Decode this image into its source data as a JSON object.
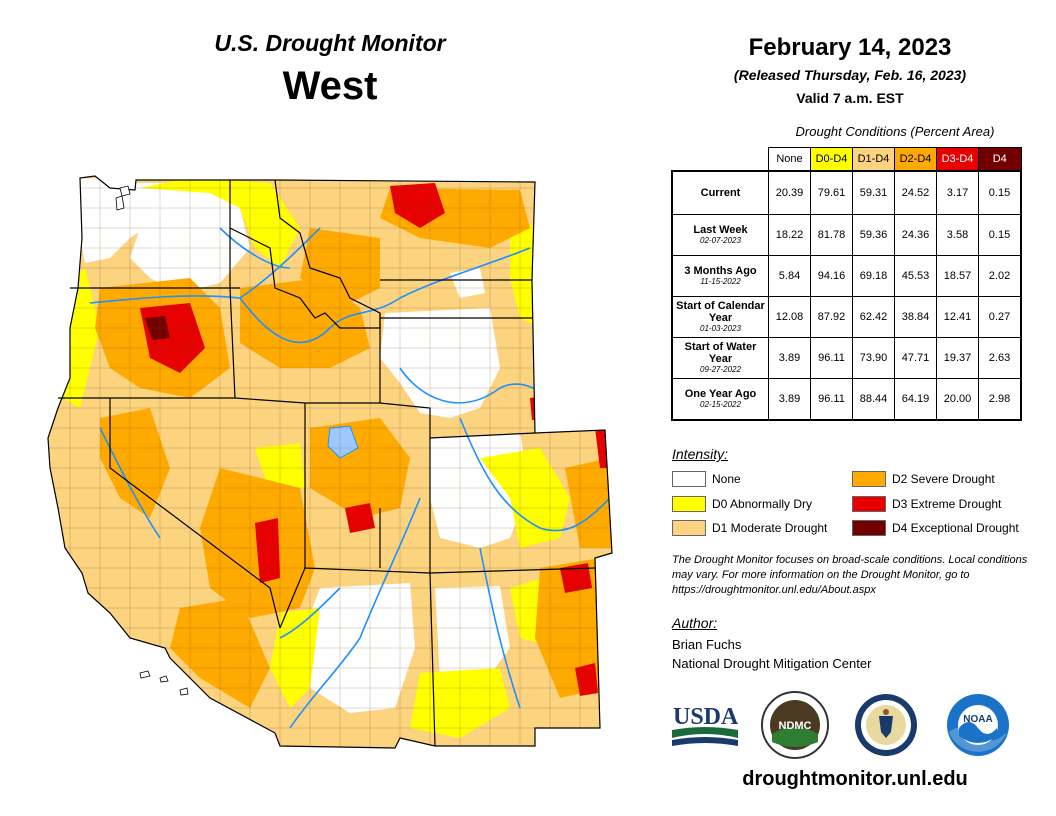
{
  "header": {
    "product": "U.S. Drought Monitor",
    "region": "West",
    "date": "February 14, 2023",
    "released": "(Released Thursday, Feb. 16, 2023)",
    "valid": "Valid 7 a.m. EST"
  },
  "colors": {
    "none": "#ffffff",
    "D0": "#ffff00",
    "D1": "#fcd37f",
    "D2": "#ffaa00",
    "D3": "#e60000",
    "D4": "#730000",
    "water": "#1e90ff"
  },
  "table": {
    "caption": "Drought Conditions (Percent Area)",
    "columns": [
      "None",
      "D0-D4",
      "D1-D4",
      "D2-D4",
      "D3-D4",
      "D4"
    ],
    "rows": [
      {
        "label": "Current",
        "date": "",
        "values": [
          "20.39",
          "79.61",
          "59.31",
          "24.52",
          "3.17",
          "0.15"
        ]
      },
      {
        "label": "Last Week",
        "date": "02-07-2023",
        "values": [
          "18.22",
          "81.78",
          "59.36",
          "24.36",
          "3.58",
          "0.15"
        ]
      },
      {
        "label": "3 Months Ago",
        "date": "11-15-2022",
        "values": [
          "5.84",
          "94.16",
          "69.18",
          "45.53",
          "18.57",
          "2.02"
        ]
      },
      {
        "label": "Start of Calendar Year",
        "date": "01-03-2023",
        "values": [
          "12.08",
          "87.92",
          "62.42",
          "38.84",
          "12.41",
          "0.27"
        ]
      },
      {
        "label": "Start of Water Year",
        "date": "09-27-2022",
        "values": [
          "3.89",
          "96.11",
          "73.90",
          "47.71",
          "19.37",
          "2.63"
        ]
      },
      {
        "label": "One Year Ago",
        "date": "02-15-2022",
        "values": [
          "3.89",
          "96.11",
          "88.44",
          "64.19",
          "20.00",
          "2.98"
        ]
      }
    ]
  },
  "legend": {
    "title": "Intensity:",
    "items": [
      {
        "label": "None",
        "color": "#ffffff"
      },
      {
        "label": "D0 Abnormally Dry",
        "color": "#ffff00"
      },
      {
        "label": "D1 Moderate Drought",
        "color": "#fcd37f"
      },
      {
        "label": "D2 Severe Drought",
        "color": "#ffaa00"
      },
      {
        "label": "D3 Extreme Drought",
        "color": "#e60000"
      },
      {
        "label": "D4 Exceptional Drought",
        "color": "#730000"
      }
    ]
  },
  "note": "The Drought Monitor focuses on broad-scale conditions. Local conditions may vary. For more information on the Drought Monitor, go to https://droughtmonitor.unl.edu/About.aspx",
  "author": {
    "title": "Author:",
    "name": "Brian Fuchs",
    "org": "National Drought Mitigation Center"
  },
  "logos": [
    {
      "icon": "usda-logo",
      "text": "USDA"
    },
    {
      "icon": "ndmc-logo",
      "text": "NDMC"
    },
    {
      "icon": "commerce-seal-logo",
      "text": ""
    },
    {
      "icon": "noaa-logo",
      "text": "NOAA"
    }
  ],
  "website": "droughtmonitor.unl.edu"
}
